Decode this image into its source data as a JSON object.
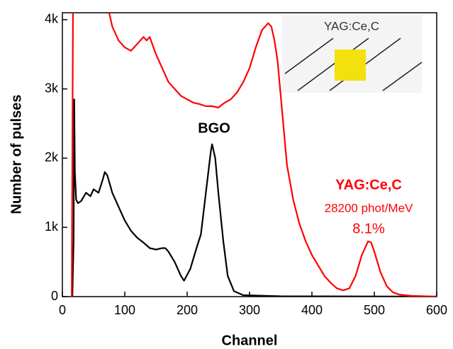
{
  "chart_data": {
    "type": "line",
    "x_label": "Channel",
    "y_label": "Number of pulses",
    "xlim": [
      0,
      600
    ],
    "ylim": [
      0,
      4100
    ],
    "xticks": [
      0,
      100,
      200,
      300,
      400,
      500,
      600
    ],
    "yticks": [
      0,
      {
        "value": 1000,
        "label": "1k"
      },
      {
        "value": 2000,
        "label": "2k"
      },
      {
        "value": 3000,
        "label": "3k"
      },
      {
        "value": 4000,
        "label": "4k"
      }
    ],
    "series": [
      {
        "name": "BGO",
        "color": "#000000",
        "x": [
          16,
          18,
          19,
          20,
          22,
          25,
          30,
          38,
          45,
          50,
          58,
          65,
          68,
          72,
          80,
          90,
          100,
          110,
          120,
          130,
          140,
          150,
          160,
          165,
          170,
          180,
          190,
          195,
          205,
          215,
          222,
          230,
          238,
          240,
          245,
          250,
          258,
          265,
          275,
          290,
          350,
          600
        ],
        "values": [
          0,
          800,
          2850,
          1800,
          1400,
          1350,
          1380,
          1500,
          1450,
          1550,
          1500,
          1700,
          1800,
          1750,
          1500,
          1300,
          1100,
          950,
          850,
          780,
          700,
          680,
          700,
          700,
          650,
          500,
          300,
          230,
          400,
          700,
          900,
          1500,
          2100,
          2200,
          2000,
          1500,
          800,
          300,
          80,
          20,
          5,
          0
        ]
      },
      {
        "name": "YAG:Ce,C",
        "color": "#ff0000",
        "x": [
          15,
          17,
          18,
          75,
          80,
          90,
          100,
          110,
          120,
          130,
          135,
          140,
          150,
          160,
          170,
          180,
          190,
          200,
          210,
          220,
          230,
          240,
          250,
          260,
          270,
          280,
          290,
          300,
          310,
          320,
          330,
          335,
          340,
          345,
          350,
          355,
          360,
          370,
          380,
          390,
          400,
          410,
          420,
          430,
          440,
          450,
          460,
          470,
          480,
          490,
          495,
          500,
          510,
          520,
          530,
          540,
          560,
          600
        ],
        "values": [
          0,
          4200,
          null,
          4100,
          3900,
          3700,
          3600,
          3550,
          3650,
          3750,
          3700,
          3750,
          3500,
          3300,
          3100,
          3000,
          2900,
          2850,
          2800,
          2780,
          2750,
          2750,
          2730,
          2800,
          2850,
          2950,
          3100,
          3300,
          3600,
          3850,
          3950,
          3900,
          3700,
          3400,
          2900,
          2400,
          1900,
          1400,
          1050,
          800,
          600,
          450,
          300,
          200,
          120,
          90,
          120,
          300,
          600,
          800,
          780,
          650,
          350,
          150,
          60,
          30,
          10,
          0
        ]
      }
    ],
    "annotations": [
      "BGO",
      "YAG:Ce,C",
      "28200 phot/MeV",
      "8.1%"
    ],
    "inset_label": "YAG:Ce,C"
  }
}
